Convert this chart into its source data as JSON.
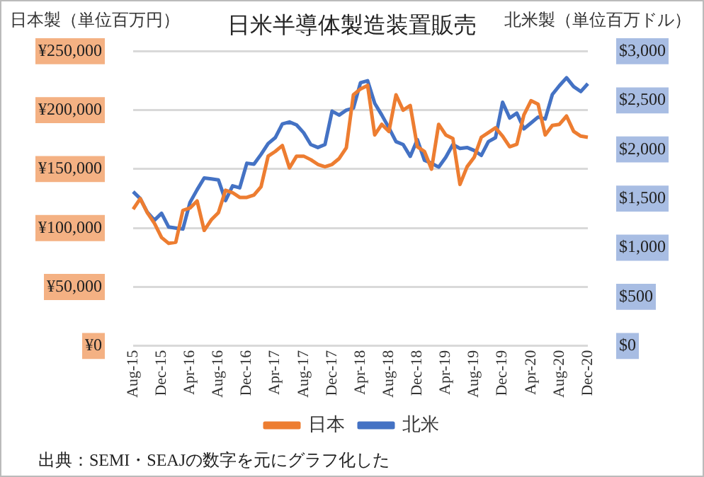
{
  "chart_data": {
    "type": "line",
    "title": "日米半導体製造装置販売",
    "ylabel": "日本製（単位百万円）",
    "y2label": "北米製（単位百万ドル）",
    "categories": [
      "Aug-15",
      null,
      null,
      null,
      "Dec-15",
      null,
      null,
      null,
      "Apr-16",
      null,
      null,
      null,
      "Aug-16",
      null,
      null,
      null,
      "Dec-16",
      null,
      null,
      null,
      "Apr-17",
      null,
      null,
      null,
      "Aug-17",
      null,
      null,
      null,
      "Dec-17",
      null,
      null,
      null,
      "Apr-18",
      null,
      null,
      null,
      "Aug-18",
      null,
      null,
      null,
      "Dec-18",
      null,
      null,
      null,
      "Apr-19",
      null,
      null,
      null,
      "Aug-19",
      null,
      null,
      null,
      "Dec-19",
      null,
      null,
      null,
      "Apr-20",
      null,
      null,
      null,
      "Aug-20",
      null,
      null,
      null,
      "Dec-20"
    ],
    "series": [
      {
        "name": "日本",
        "color": "#ed7d31",
        "values": [
          116000,
          125000,
          113000,
          104000,
          92000,
          87000,
          88000,
          115000,
          117000,
          123000,
          98000,
          107000,
          113000,
          132000,
          130000,
          126000,
          126000,
          128000,
          135000,
          161000,
          165000,
          170000,
          151000,
          161000,
          161000,
          158000,
          154000,
          152000,
          154000,
          159000,
          168000,
          213000,
          218000,
          221000,
          179000,
          188000,
          182000,
          213000,
          200000,
          204000,
          169000,
          165000,
          150000,
          188000,
          179000,
          176000,
          137000,
          152000,
          160000,
          177000,
          181000,
          185000,
          178000,
          169000,
          171000,
          196000,
          208000,
          205000,
          179000,
          187000,
          188000,
          195000,
          182000,
          178000,
          177000
        ]
      },
      {
        "name": "北米",
        "color": "#4472c4",
        "axis": "y2",
        "values": [
          1570,
          1500,
          1360,
          1280,
          1350,
          1210,
          1200,
          1190,
          1460,
          1590,
          1710,
          1700,
          1690,
          1480,
          1630,
          1610,
          1860,
          1850,
          1950,
          2060,
          2120,
          2260,
          2280,
          2250,
          2170,
          2050,
          2020,
          2050,
          2390,
          2350,
          2400,
          2420,
          2680,
          2700,
          2470,
          2350,
          2220,
          2080,
          2050,
          1930,
          2100,
          1890,
          1860,
          1820,
          1920,
          2050,
          2010,
          2020,
          1990,
          1940,
          2080,
          2120,
          2480,
          2320,
          2370,
          2210,
          2270,
          2330,
          2310,
          2560,
          2650,
          2730,
          2640,
          2590,
          2670
        ]
      }
    ],
    "ylim": [
      0,
      250000
    ],
    "yticks": [
      {
        "value": 0,
        "label": "¥0"
      },
      {
        "value": 50000,
        "label": "¥50,000"
      },
      {
        "value": 100000,
        "label": "¥100,000"
      },
      {
        "value": 150000,
        "label": "¥150,000"
      },
      {
        "value": 200000,
        "label": "¥200,000"
      },
      {
        "value": 250000,
        "label": "¥250,000"
      }
    ],
    "y2lim": [
      0,
      3000
    ],
    "y2ticks": [
      {
        "value": 0,
        "label": "$0"
      },
      {
        "value": 500,
        "label": "$500"
      },
      {
        "value": 1000,
        "label": "$1,000"
      },
      {
        "value": 1500,
        "label": "$1,500"
      },
      {
        "value": 2000,
        "label": "$2,000"
      },
      {
        "value": 2500,
        "label": "$2,500"
      },
      {
        "value": 3000,
        "label": "$3,000"
      }
    ],
    "grid": "y",
    "legend": "bottom",
    "marker": "none",
    "line_style": "solid",
    "annotations": [
      "出典：SEMI・SEAJの数字を元にグラフ化した"
    ]
  }
}
